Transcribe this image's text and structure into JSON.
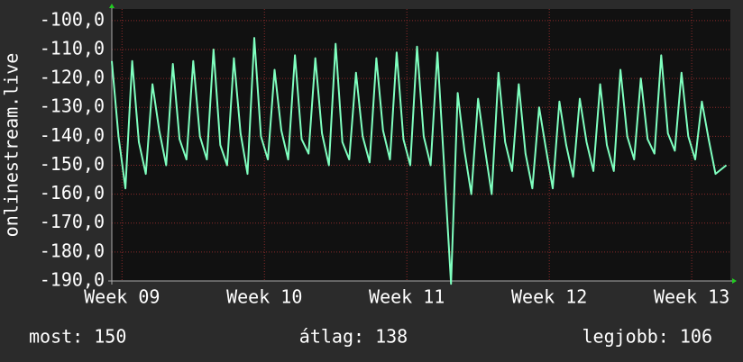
{
  "chart_data": {
    "type": "line",
    "ylabel": "onlinestream.live",
    "x": [
      0,
      0.33,
      0.67,
      1,
      1.33,
      1.67,
      2,
      2.33,
      2.67,
      3,
      3.33,
      3.67,
      4,
      4.33,
      4.67,
      5,
      5.33,
      5.67,
      6,
      6.33,
      6.67,
      7,
      7.33,
      7.67,
      8,
      8.33,
      8.67,
      9,
      9.33,
      9.67,
      10,
      10.33,
      10.67,
      11,
      11.33,
      11.67,
      12,
      12.33,
      12.67,
      13,
      13.33,
      13.67,
      14,
      14.33,
      14.67,
      15,
      15.33,
      15.67,
      16,
      16.33,
      16.67,
      17,
      17.33,
      17.67,
      18,
      18.33,
      18.67,
      19,
      19.33,
      19.67,
      20,
      20.33,
      20.67,
      21,
      21.33,
      21.67,
      22,
      22.33,
      22.67,
      23,
      23.33,
      23.67,
      24,
      24.33,
      24.67,
      25,
      25.33,
      25.67,
      26,
      26.33,
      26.67,
      27,
      27.33,
      27.67,
      28,
      28.33,
      28.67,
      29,
      29.33,
      29.67,
      30.2
    ],
    "series": [
      {
        "name": "onlinestream.live",
        "color": "#7fffbf",
        "values": [
          -114,
          -140,
          -158,
          -114,
          -142,
          -153,
          -122,
          -138,
          -150,
          -115,
          -141,
          -148,
          -114,
          -140,
          -148,
          -110,
          -143,
          -150,
          -113,
          -139,
          -153,
          -106,
          -140,
          -148,
          -117,
          -138,
          -148,
          -112,
          -141,
          -146,
          -113,
          -139,
          -150,
          -108,
          -142,
          -148,
          -118,
          -140,
          -149,
          -113,
          -138,
          -148,
          -111,
          -141,
          -150,
          -109,
          -140,
          -150,
          -111,
          -150,
          -191,
          -125,
          -145,
          -160,
          -127,
          -144,
          -160,
          -118,
          -142,
          -152,
          -122,
          -146,
          -158,
          -130,
          -144,
          -158,
          -128,
          -143,
          -154,
          -127,
          -142,
          -152,
          -122,
          -143,
          -152,
          -117,
          -140,
          -148,
          -120,
          -141,
          -146,
          -112,
          -139,
          -145,
          -118,
          -140,
          -148,
          -128,
          -141,
          -153,
          -150
        ]
      }
    ],
    "xlim": [
      0,
      30.4
    ],
    "xticks": [
      {
        "value": 0.5,
        "label": "Week 09"
      },
      {
        "value": 7.5,
        "label": "Week 10"
      },
      {
        "value": 14.5,
        "label": "Week 11"
      },
      {
        "value": 21.5,
        "label": "Week 12"
      },
      {
        "value": 28.5,
        "label": "Week 13"
      }
    ],
    "ylim": [
      -190,
      -96
    ],
    "yticks": [
      {
        "value": -190,
        "label": "-190,0"
      },
      {
        "value": -180,
        "label": "-180,0"
      },
      {
        "value": -170,
        "label": "-170,0"
      },
      {
        "value": -160,
        "label": "-160,0"
      },
      {
        "value": -150,
        "label": "-150,0"
      },
      {
        "value": -140,
        "label": "-140,0"
      },
      {
        "value": -130,
        "label": "-130,0"
      },
      {
        "value": -120,
        "label": "-120,0"
      },
      {
        "value": -110,
        "label": "-110,0"
      },
      {
        "value": -100,
        "label": "-100,0"
      }
    ],
    "grid": true,
    "footer": [
      "most: 150",
      "átlag: 138",
      "legjobb: 106"
    ]
  }
}
